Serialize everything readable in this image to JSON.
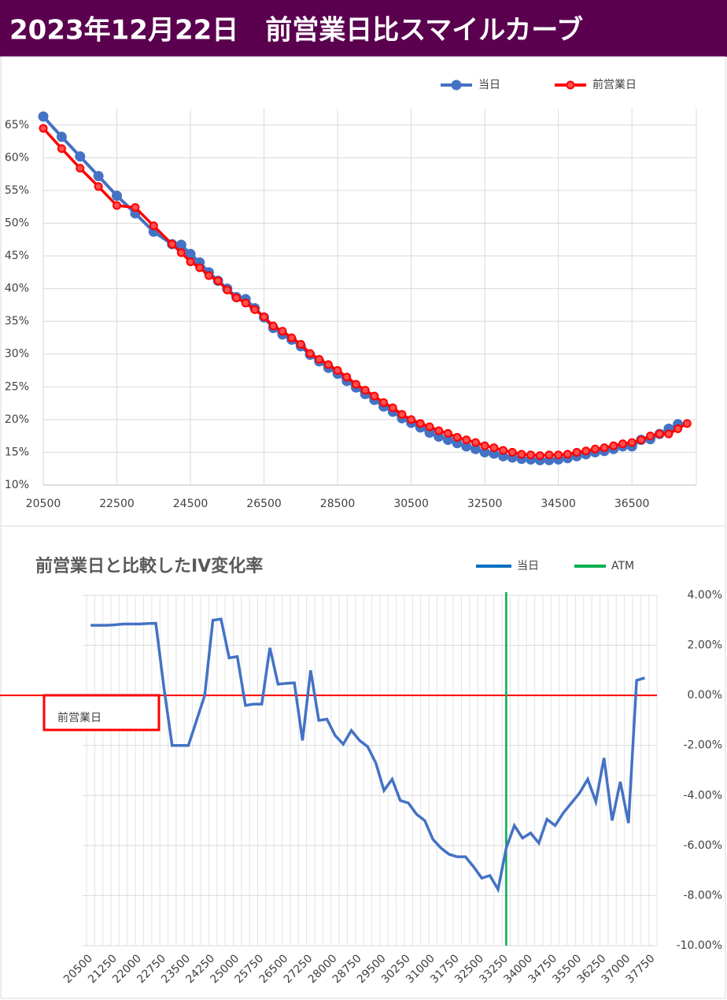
{
  "header": {
    "title": "2023年12月22日　前営業日比スマイルカーブ"
  },
  "chart_data": [
    {
      "type": "line",
      "xlim": [
        20500,
        38250
      ],
      "xticks": [
        20500,
        22500,
        24500,
        26500,
        28500,
        30500,
        32500,
        34500,
        36500
      ],
      "ylim": [
        10,
        67.5
      ],
      "yticks": [
        {
          "value": 10,
          "label": "10%"
        },
        {
          "value": 15,
          "label": "15%"
        },
        {
          "value": 20,
          "label": "20%"
        },
        {
          "value": 25,
          "label": "25%"
        },
        {
          "value": 30,
          "label": "30%"
        },
        {
          "value": 35,
          "label": "35%"
        },
        {
          "value": 40,
          "label": "40%"
        },
        {
          "value": 45,
          "label": "45%"
        },
        {
          "value": 50,
          "label": "50%"
        },
        {
          "value": 55,
          "label": "55%"
        },
        {
          "value": 60,
          "label": "60%"
        },
        {
          "value": 65,
          "label": "65%"
        }
      ],
      "grid": true,
      "legend": "top-right",
      "series": [
        {
          "name": "当日",
          "color": "#4472c4",
          "marker_fill": "#4472c4",
          "x": [
            20500,
            21000,
            21500,
            22000,
            22500,
            23000,
            23500,
            24000,
            24250,
            24500,
            24750,
            25000,
            25250,
            25500,
            25750,
            26000,
            26250,
            26500,
            26750,
            27000,
            27250,
            27500,
            27750,
            28000,
            28250,
            28500,
            28750,
            29000,
            29250,
            29500,
            29750,
            30000,
            30250,
            30500,
            30750,
            31000,
            31250,
            31500,
            31750,
            32000,
            32250,
            32500,
            32750,
            33000,
            33250,
            33500,
            33750,
            34000,
            34250,
            34500,
            34750,
            35000,
            35250,
            35500,
            35750,
            36000,
            36250,
            36500,
            36750,
            37000,
            37250,
            37500,
            37750
          ],
          "values": [
            66.3,
            63.2,
            60.2,
            57.2,
            54.2,
            51.5,
            48.7,
            46.8,
            46.7,
            45.3,
            44.0,
            42.5,
            41.2,
            40.0,
            38.7,
            38.4,
            37.0,
            35.6,
            34.0,
            33.0,
            32.2,
            31.2,
            29.9,
            28.9,
            27.9,
            27.0,
            25.9,
            24.9,
            23.9,
            23.0,
            22.0,
            21.2,
            20.2,
            19.5,
            18.8,
            18.0,
            17.4,
            16.9,
            16.4,
            15.9,
            15.5,
            15.0,
            14.8,
            14.4,
            14.2,
            14.0,
            13.9,
            13.8,
            13.8,
            13.9,
            14.1,
            14.4,
            14.7,
            15.0,
            15.2,
            15.5,
            15.9,
            15.9,
            16.9,
            17.0,
            17.8,
            18.6,
            19.3
          ]
        },
        {
          "name": "前営業日",
          "color": "#ff0000",
          "marker_fill": "#ff5050",
          "x": [
            20500,
            21000,
            21500,
            22000,
            22500,
            23000,
            23500,
            24000,
            24250,
            24500,
            24750,
            25000,
            25250,
            25500,
            25750,
            26000,
            26250,
            26500,
            26750,
            27000,
            27250,
            27500,
            27750,
            28000,
            28250,
            28500,
            28750,
            29000,
            29250,
            29500,
            29750,
            30000,
            30250,
            30500,
            30750,
            31000,
            31250,
            31500,
            31750,
            32000,
            32250,
            32500,
            32750,
            33000,
            33250,
            33500,
            33750,
            34000,
            34250,
            34500,
            34750,
            35000,
            35250,
            35500,
            35750,
            36000,
            36250,
            36500,
            36750,
            37000,
            37250,
            37500,
            37750,
            38000
          ],
          "values": [
            64.5,
            61.4,
            58.4,
            55.6,
            52.7,
            52.4,
            49.6,
            46.8,
            45.5,
            44.1,
            43.2,
            42.0,
            41.2,
            39.8,
            38.6,
            37.8,
            36.8,
            35.7,
            34.3,
            33.5,
            32.5,
            31.5,
            30.1,
            29.2,
            28.4,
            27.5,
            26.5,
            25.4,
            24.5,
            23.6,
            22.6,
            21.8,
            20.8,
            20.0,
            19.4,
            18.9,
            18.3,
            17.9,
            17.3,
            16.9,
            16.5,
            16.0,
            15.7,
            15.3,
            15.0,
            14.7,
            14.6,
            14.5,
            14.6,
            14.6,
            14.7,
            15.0,
            15.2,
            15.5,
            15.7,
            16.0,
            16.3,
            16.5,
            16.9,
            17.5,
            17.8,
            17.8,
            18.6,
            19.4
          ]
        }
      ]
    },
    {
      "type": "line",
      "title": "前営業日と比較したIV変化率",
      "categories": [
        "20500",
        null,
        null,
        "21250",
        null,
        null,
        "22000",
        null,
        null,
        "22750",
        null,
        null,
        "23500",
        null,
        null,
        "24250",
        null,
        null,
        "25000",
        null,
        null,
        "25750",
        null,
        null,
        "26500",
        null,
        null,
        "27250",
        null,
        null,
        "28000",
        null,
        null,
        "28750",
        null,
        null,
        "29500",
        null,
        null,
        "30250",
        null,
        null,
        "31000",
        null,
        null,
        "31750",
        null,
        null,
        "32500",
        null,
        null,
        "33250",
        null,
        null,
        "34000",
        null,
        null,
        "34750",
        null,
        null,
        "35500",
        null,
        null,
        "36250",
        null,
        null,
        "37000",
        null,
        null,
        "37750"
      ],
      "y2lim": [
        -10,
        4
      ],
      "y2ticks": [
        {
          "value": -10,
          "label": "-10.00%"
        },
        {
          "value": -8,
          "label": "-8.00%"
        },
        {
          "value": -6,
          "label": "-6.00%"
        },
        {
          "value": -4,
          "label": "-4.00%"
        },
        {
          "value": -2,
          "label": "-2.00%"
        },
        {
          "value": 0,
          "label": "0.00%"
        },
        {
          "value": 2,
          "label": "2.00%"
        },
        {
          "value": 4,
          "label": "4.00%"
        }
      ],
      "grid": true,
      "legend": "top-right",
      "series": [
        {
          "name": "当日",
          "color": "#4472c4",
          "axis": "y2",
          "values": [
            2.8,
            2.8,
            2.8,
            2.82,
            2.85,
            2.85,
            2.85,
            2.87,
            2.88,
            0.3,
            -2.0,
            -2.0,
            -2.0,
            -1.0,
            0.0,
            3.0,
            3.05,
            1.5,
            1.55,
            -0.4,
            -0.35,
            -0.35,
            1.9,
            0.45,
            0.48,
            0.5,
            -1.8,
            1.0,
            -1.0,
            -0.95,
            -1.6,
            -1.95,
            -1.4,
            -1.8,
            -2.05,
            -2.7,
            -3.8,
            -3.35,
            -4.2,
            -4.3,
            -4.75,
            -5.0,
            -5.75,
            -6.1,
            -6.35,
            -6.45,
            -6.45,
            -6.85,
            -7.3,
            -7.2,
            -7.75,
            -6.1,
            -5.2,
            -5.7,
            -5.5,
            -5.9,
            -4.95,
            -5.2,
            -4.7,
            -4.3,
            -3.9,
            -3.35,
            -4.25,
            -2.5,
            -5.0,
            -3.45,
            -5.1,
            0.6,
            0.7,
            null
          ]
        }
      ],
      "atm": {
        "name": "ATM",
        "color": "#00b050",
        "category": "33250"
      },
      "reference": {
        "name": "前営業日",
        "value": 0,
        "color": "#ff0000"
      }
    }
  ]
}
